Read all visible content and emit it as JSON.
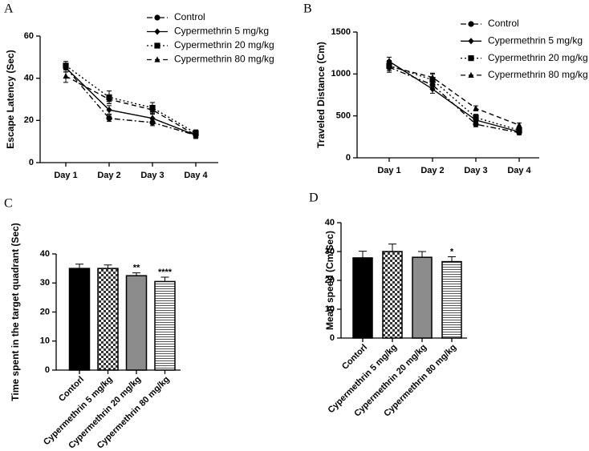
{
  "chart_data": [
    {
      "type": "line",
      "panel": "A",
      "y_label": "Escape Latency (Sec)",
      "categories": [
        "Day 1",
        "Day 2",
        "Day 3",
        "Day 4"
      ],
      "ylim": [
        0,
        60
      ],
      "yticks": [
        0,
        20,
        40,
        60
      ],
      "series": [
        {
          "name": "Control",
          "color": "#000000",
          "marker": "circle",
          "dash": "dashdot",
          "values": [
            45,
            21,
            19,
            13
          ],
          "errors": [
            2,
            1.5,
            1.5,
            1.5
          ]
        },
        {
          "name": "Cypermethrin 5 mg/kg",
          "color": "#000000",
          "marker": "diamond",
          "dash": "solid",
          "values": [
            45,
            25,
            21,
            13
          ],
          "errors": [
            2,
            2,
            2,
            1.5
          ]
        },
        {
          "name": "Cypermethrin 20 mg/kg",
          "color": "#000000",
          "marker": "square",
          "dash": "dotted",
          "values": [
            46,
            31,
            26,
            14
          ],
          "errors": [
            2,
            3,
            2.5,
            1.5
          ]
        },
        {
          "name": "Cypermethrin 80 mg/kg",
          "color": "#000000",
          "marker": "triangle",
          "dash": "dashed",
          "values": [
            41,
            30,
            25,
            13
          ],
          "errors": [
            3,
            2,
            2,
            1.5
          ]
        }
      ]
    },
    {
      "type": "line",
      "panel": "B",
      "y_label": "Traveled Distance (Cm)",
      "categories": [
        "Day 1",
        "Day 2",
        "Day 3",
        "Day 4"
      ],
      "ylim": [
        0,
        1500
      ],
      "yticks": [
        0,
        500,
        1000,
        1500
      ],
      "series": [
        {
          "name": "Control",
          "color": "#000000",
          "marker": "circle",
          "dash": "dashdot",
          "values": [
            1080,
            870,
            400,
            300
          ],
          "errors": [
            60,
            50,
            30,
            25
          ]
        },
        {
          "name": "Cypermethrin 5 mg/kg",
          "color": "#000000",
          "marker": "diamond",
          "dash": "solid",
          "values": [
            1150,
            820,
            450,
            310
          ],
          "errors": [
            50,
            50,
            30,
            25
          ]
        },
        {
          "name": "Cypermethrin 20 mg/kg",
          "color": "#000000",
          "marker": "square",
          "dash": "dotted",
          "values": [
            1100,
            930,
            480,
            330
          ],
          "errors": [
            60,
            70,
            40,
            25
          ]
        },
        {
          "name": "Cypermethrin 80 mg/kg",
          "color": "#000000",
          "marker": "triangle",
          "dash": "dashed",
          "values": [
            1090,
            960,
            590,
            390
          ],
          "errors": [
            50,
            50,
            30,
            25
          ]
        }
      ]
    },
    {
      "type": "bar",
      "panel": "C",
      "y_label": "Time spent in the target quadrant (Sec)",
      "categories": [
        "Contorl",
        "Cypermethrin 5 mg/kg",
        "Cypermethrin 20 mg/kg",
        "Cypermethrin 80 mg/kg"
      ],
      "values": [
        35,
        35,
        32.5,
        30.5
      ],
      "errors": [
        1.5,
        1.2,
        1,
        1.5
      ],
      "fills": [
        "#000000",
        "checker",
        "#8c8c8c",
        "stripes"
      ],
      "annotations": [
        null,
        null,
        "**",
        "****"
      ],
      "ylim": [
        0,
        40
      ],
      "yticks": [
        0,
        10,
        20,
        30,
        40
      ]
    },
    {
      "type": "bar",
      "panel": "D",
      "y_label": "Mean speed (Cm/Sec)",
      "categories": [
        "Contorl",
        "Cypermethrin 5 mg/kg",
        "Cypermethrin 20 mg/kg",
        "Cypermethrin 80 mg/kg"
      ],
      "values": [
        27.8,
        30,
        28,
        26.5
      ],
      "errors": [
        2.3,
        2.6,
        2,
        1.7
      ],
      "fills": [
        "#000000",
        "checker",
        "#8c8c8c",
        "stripes"
      ],
      "annotations": [
        null,
        null,
        null,
        "*"
      ],
      "ylim": [
        0,
        40
      ],
      "yticks": [
        0,
        10,
        20,
        30,
        40
      ]
    }
  ]
}
